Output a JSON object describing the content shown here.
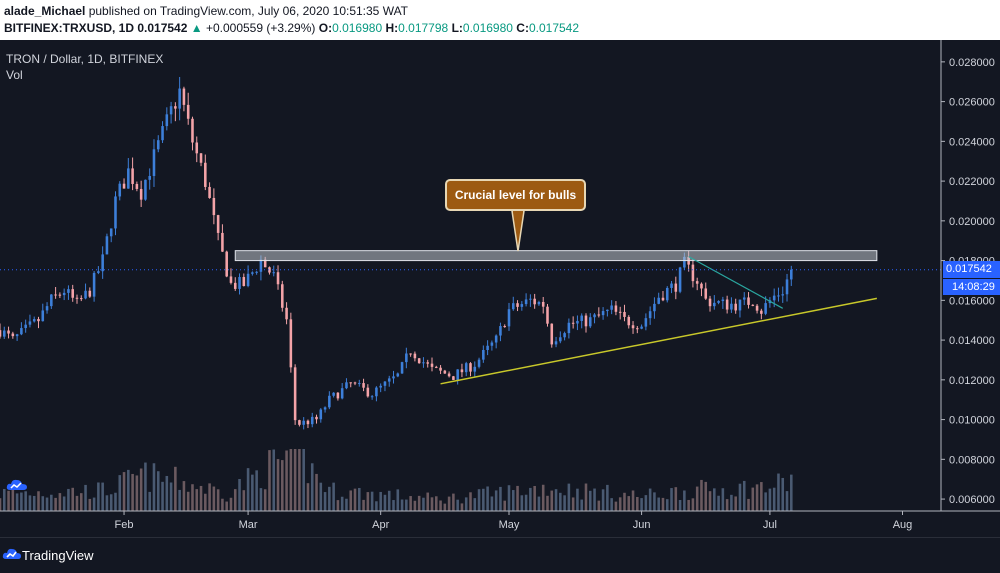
{
  "header": {
    "author": "alade_Michael",
    "published": " published on TradingView.com, July 06, 2020 10:51:35 WAT",
    "symbol": "BITFINEX:TRXUSD, 1D",
    "last": " 0.017542 ",
    "change": "+0.000559 (+3.29%)",
    "o_label": "O:",
    "o_value": "0.016980",
    "h_label": "H:",
    "h_value": "0.017798",
    "l_label": "L:",
    "l_value": "0.016980",
    "c_label": "C:",
    "c_value": "0.017542"
  },
  "legend": {
    "title": "TRON / Dollar, 1D, BITFINEX",
    "vol": "Vol"
  },
  "annotation": {
    "callout": "Crucial level for bulls"
  },
  "badges": {
    "price": "0.017542",
    "countdown": "14:08:29"
  },
  "footer": {
    "brand": "TradingView"
  },
  "colors": {
    "up": "#3d7fd9",
    "down": "#f4a3a8",
    "support": "#c8c82a",
    "resistance": "#c0c4cc",
    "channel": "#2aa7a0",
    "badge": "#2962ff",
    "callout": "#9c5a12"
  },
  "chart_data": {
    "type": "candlestick",
    "title": "TRON / Dollar, 1D, BITFINEX",
    "x_ticks": [
      "Feb",
      "Mar",
      "Apr",
      "May",
      "Jun",
      "Jul",
      "Aug"
    ],
    "y_ticks": [
      "0.006000",
      "0.008000",
      "0.010000",
      "0.012000",
      "0.014000",
      "0.016000",
      "0.018000",
      "0.020000",
      "0.022000",
      "0.024000",
      "0.026000",
      "0.028000"
    ],
    "ylim": [
      0.0054,
      0.0291
    ],
    "x_range": [
      "2020-01-03",
      "2020-08-10"
    ],
    "last_price": 0.017542,
    "resistance_zone": {
      "low": 0.018,
      "high": 0.0185,
      "from": "2020-02-27",
      "to": "2020-07-26"
    },
    "support_line": {
      "from": {
        "date": "2020-04-15",
        "price": 0.0118
      },
      "to": {
        "date": "2020-07-26",
        "price": 0.0161
      }
    },
    "descending_line": {
      "from": {
        "date": "2020-06-12",
        "price": 0.0182
      },
      "to": {
        "date": "2020-07-04",
        "price": 0.0156
      }
    },
    "anchors": [
      [
        "2020-01-03",
        0.0145
      ],
      [
        "2020-01-06",
        0.014
      ],
      [
        "2020-01-09",
        0.0145
      ],
      [
        "2020-01-12",
        0.015
      ],
      [
        "2020-01-15",
        0.016
      ],
      [
        "2020-01-18",
        0.0165
      ],
      [
        "2020-01-21",
        0.0158
      ],
      [
        "2020-01-24",
        0.0165
      ],
      [
        "2020-01-27",
        0.018
      ],
      [
        "2020-01-30",
        0.021
      ],
      [
        "2020-02-02",
        0.0225
      ],
      [
        "2020-02-05",
        0.0215
      ],
      [
        "2020-02-08",
        0.0232
      ],
      [
        "2020-02-12",
        0.0255
      ],
      [
        "2020-02-14",
        0.0265
      ],
      [
        "2020-02-17",
        0.024
      ],
      [
        "2020-02-20",
        0.022
      ],
      [
        "2020-02-23",
        0.019
      ],
      [
        "2020-02-26",
        0.0168
      ],
      [
        "2020-02-29",
        0.0168
      ],
      [
        "2020-03-04",
        0.018
      ],
      [
        "2020-03-07",
        0.0172
      ],
      [
        "2020-03-10",
        0.015
      ],
      [
        "2020-03-12",
        0.01
      ],
      [
        "2020-03-13",
        0.0098
      ],
      [
        "2020-03-17",
        0.01
      ],
      [
        "2020-03-20",
        0.011
      ],
      [
        "2020-03-25",
        0.0118
      ],
      [
        "2020-03-30",
        0.0113
      ],
      [
        "2020-04-05",
        0.0122
      ],
      [
        "2020-04-08",
        0.0135
      ],
      [
        "2020-04-13",
        0.0125
      ],
      [
        "2020-04-18",
        0.0122
      ],
      [
        "2020-04-23",
        0.0128
      ],
      [
        "2020-04-28",
        0.014
      ],
      [
        "2020-05-01",
        0.0155
      ],
      [
        "2020-05-06",
        0.016
      ],
      [
        "2020-05-09",
        0.0158
      ],
      [
        "2020-05-11",
        0.014
      ],
      [
        "2020-05-15",
        0.0148
      ],
      [
        "2020-05-20",
        0.015
      ],
      [
        "2020-05-25",
        0.0155
      ],
      [
        "2020-05-28",
        0.015
      ],
      [
        "2020-06-01",
        0.0148
      ],
      [
        "2020-06-05",
        0.0162
      ],
      [
        "2020-06-09",
        0.0168
      ],
      [
        "2020-06-11",
        0.0178
      ],
      [
        "2020-06-14",
        0.017
      ],
      [
        "2020-06-16",
        0.016
      ],
      [
        "2020-06-20",
        0.0158
      ],
      [
        "2020-06-24",
        0.0158
      ],
      [
        "2020-06-27",
        0.016
      ],
      [
        "2020-06-29",
        0.0155
      ],
      [
        "2020-07-02",
        0.0162
      ],
      [
        "2020-07-04",
        0.0165
      ],
      [
        "2020-07-06",
        0.0175
      ]
    ],
    "volume_profile": [
      [
        "2020-01-03",
        0.3
      ],
      [
        "2020-01-28",
        0.35
      ],
      [
        "2020-02-05",
        0.6
      ],
      [
        "2020-02-14",
        0.5
      ],
      [
        "2020-02-25",
        0.3
      ],
      [
        "2020-03-12",
        1.0
      ],
      [
        "2020-03-20",
        0.35
      ],
      [
        "2020-04-15",
        0.2
      ],
      [
        "2020-05-10",
        0.4
      ],
      [
        "2020-06-01",
        0.25
      ],
      [
        "2020-06-12",
        0.35
      ],
      [
        "2020-06-30",
        0.4
      ],
      [
        "2020-07-06",
        0.5
      ]
    ]
  }
}
